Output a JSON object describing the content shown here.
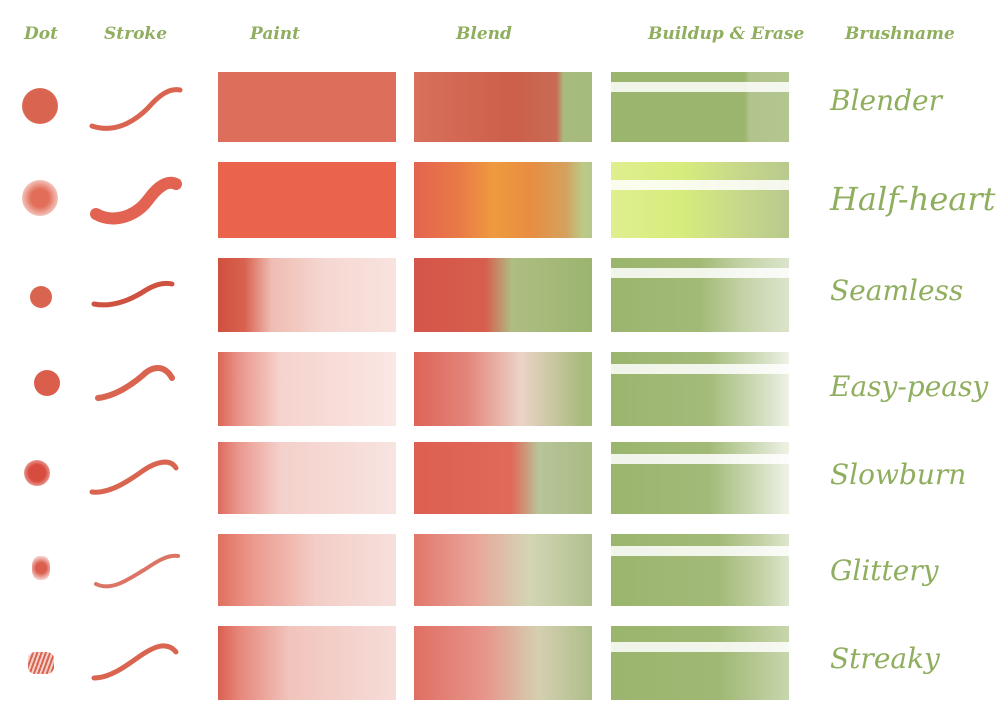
{
  "headers": {
    "dot": "Dot",
    "stroke": "Stroke",
    "paint": "Paint",
    "blend": "Blend",
    "buildup": "Buildup & Erase",
    "brushname": "Brushname"
  },
  "brushes": [
    {
      "name": "Blender"
    },
    {
      "name": "Half-heart"
    },
    {
      "name": "Seamless"
    },
    {
      "name": "Easy-peasy"
    },
    {
      "name": "Slowburn"
    },
    {
      "name": "Glittery"
    },
    {
      "name": "Streaky"
    }
  ],
  "colors": {
    "paint": "#d9644f",
    "green": "#9bb56e",
    "label": "#8fae5e"
  }
}
